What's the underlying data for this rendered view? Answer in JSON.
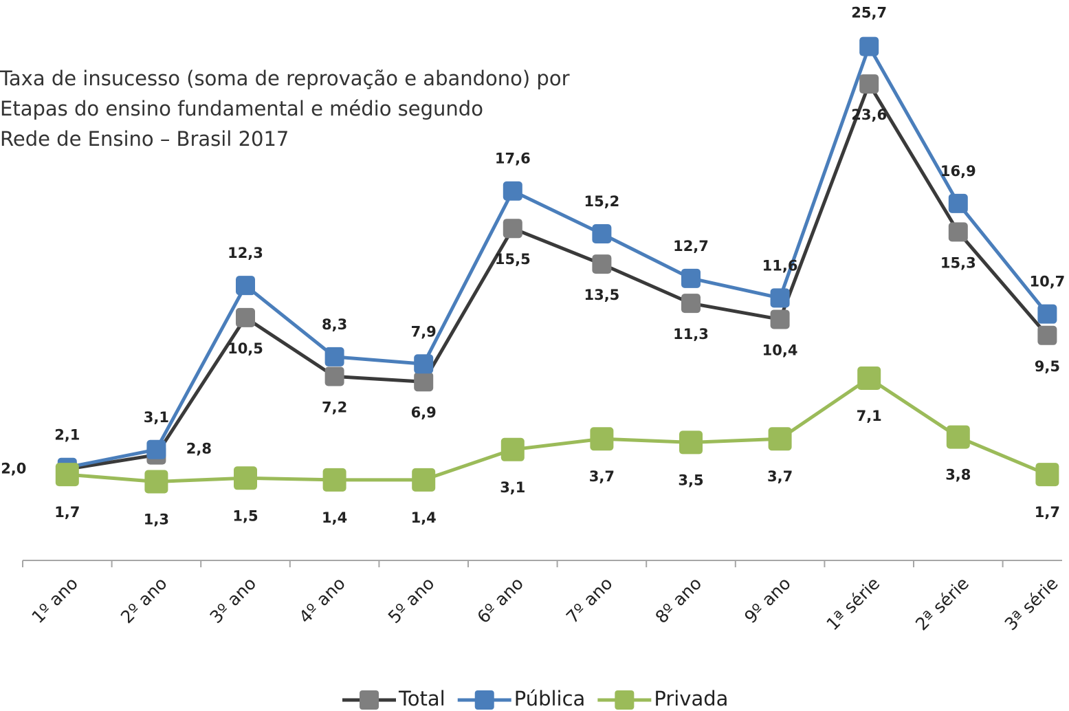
{
  "chart_data": {
    "type": "line",
    "title": [
      "Taxa de insucesso (soma de reprovação e abandono) por",
      "Etapas do ensino fundamental e médio segundo",
      "Rede de Ensino – Brasil 2017"
    ],
    "categories": [
      "1º ano",
      "2º ano",
      "3º ano",
      "4º ano",
      "5º ano",
      "6º ano",
      "7º ano",
      "8º ano",
      "9º ano",
      "1ª série",
      "2ª série",
      "3ª série"
    ],
    "ylim": [
      -3,
      28
    ],
    "legend": "bottom",
    "series": [
      {
        "name": "Total",
        "color": "#7f7f7f",
        "line_color": "#3a3a3a",
        "values": [
          2.0,
          2.8,
          10.5,
          7.2,
          6.9,
          15.5,
          13.5,
          11.3,
          10.4,
          23.6,
          15.3,
          9.5
        ],
        "value_labels": [
          "2,0",
          "2,8",
          "10,5",
          "7,2",
          "6,9",
          "15,5",
          "13,5",
          "11,3",
          "10,4",
          "23,6",
          "15,3",
          "9,5"
        ]
      },
      {
        "name": "Pública",
        "color": "#4a7ebb",
        "line_color": "#4a7ebb",
        "values": [
          2.1,
          3.1,
          12.3,
          8.3,
          7.9,
          17.6,
          15.2,
          12.7,
          11.6,
          25.7,
          16.9,
          10.7
        ],
        "value_labels": [
          "2,1",
          "3,1",
          "12,3",
          "8,3",
          "7,9",
          "17,6",
          "15,2",
          "12,7",
          "11,6",
          "25,7",
          "16,9",
          "10,7"
        ]
      },
      {
        "name": "Privada",
        "color": "#9bbb59",
        "line_color": "#9bbb59",
        "values": [
          1.7,
          1.3,
          1.5,
          1.4,
          1.4,
          3.1,
          3.7,
          3.5,
          3.7,
          7.1,
          3.8,
          1.7
        ],
        "value_labels": [
          "1,7",
          "1,3",
          "1,5",
          "1,4",
          "1,4",
          "3,1",
          "3,7",
          "3,5",
          "3,7",
          "7,1",
          "3,8",
          "1,7"
        ]
      }
    ]
  }
}
